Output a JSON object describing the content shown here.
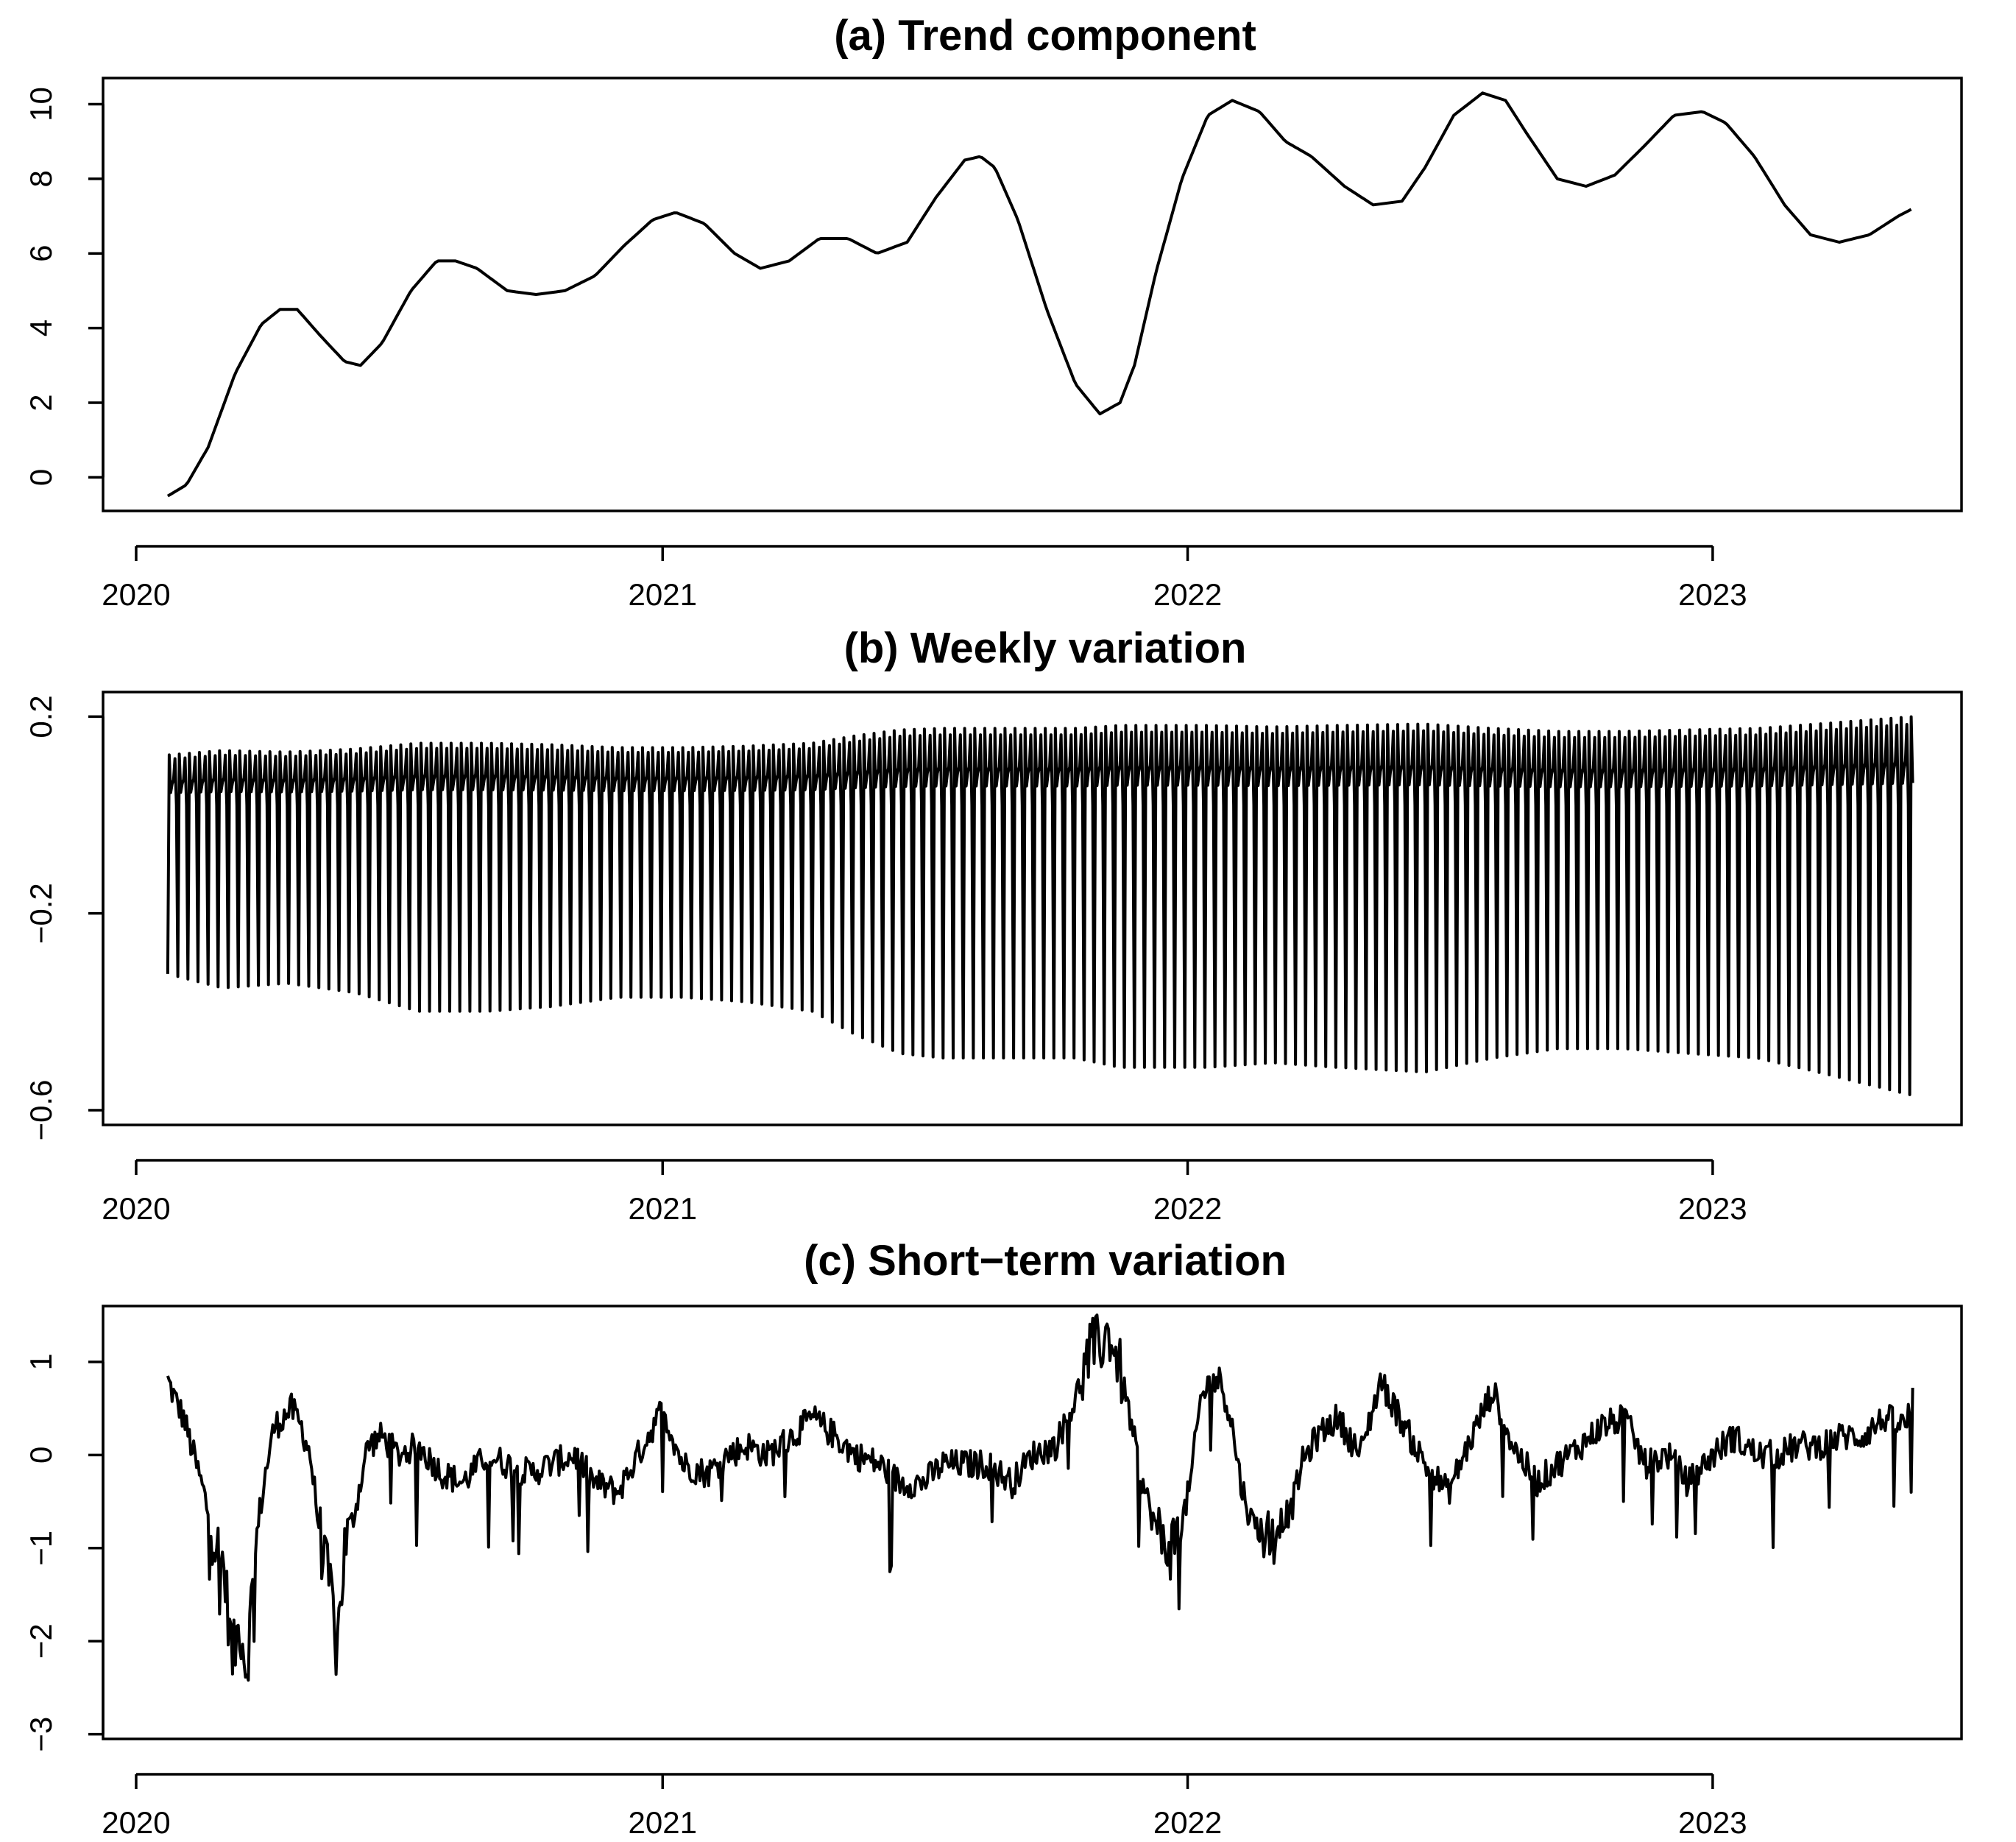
{
  "chart_data": [
    {
      "type": "line",
      "title": "(a) Trend component",
      "xlabel": "",
      "ylabel": "",
      "x_range": [
        "2020-01-23",
        "2023-05-20"
      ],
      "x_ticks": [
        {
          "value": "2020-01-01",
          "label": "2020"
        },
        {
          "value": "2021-01-01",
          "label": "2021"
        },
        {
          "value": "2022-01-01",
          "label": "2022"
        },
        {
          "value": "2023-01-01",
          "label": "2023"
        }
      ],
      "y_ticks": [
        0,
        2,
        4,
        6,
        8,
        10
      ],
      "ylim": [
        -0.9,
        10.7
      ],
      "grid": false,
      "series": [
        {
          "x": [
            "2020-01-23",
            "2020-02-05",
            "2020-02-20",
            "2020-03-10",
            "2020-03-28",
            "2020-04-10",
            "2020-04-22",
            "2020-05-08",
            "2020-05-25",
            "2020-06-05",
            "2020-06-20",
            "2020-07-10",
            "2020-07-28",
            "2020-08-10",
            "2020-08-25",
            "2020-09-15",
            "2020-10-05",
            "2020-10-25",
            "2020-11-15",
            "2020-12-05",
            "2020-12-25",
            "2021-01-10",
            "2021-01-30",
            "2021-02-20",
            "2021-03-10",
            "2021-03-30",
            "2021-04-20",
            "2021-05-10",
            "2021-05-30",
            "2021-06-20",
            "2021-07-10",
            "2021-07-30",
            "2021-08-10",
            "2021-08-20",
            "2021-09-05",
            "2021-09-25",
            "2021-10-15",
            "2021-11-01",
            "2021-11-15",
            "2021-11-25",
            "2021-12-10",
            "2021-12-28",
            "2022-01-15",
            "2022-02-01",
            "2022-02-20",
            "2022-03-10",
            "2022-03-28",
            "2022-04-20",
            "2022-05-10",
            "2022-05-30",
            "2022-06-15",
            "2022-07-05",
            "2022-07-25",
            "2022-08-10",
            "2022-08-25",
            "2022-09-15",
            "2022-10-05",
            "2022-10-25",
            "2022-11-15",
            "2022-12-05",
            "2022-12-25",
            "2023-01-10",
            "2023-01-30",
            "2023-02-20",
            "2023-03-10",
            "2023-03-30",
            "2023-04-20",
            "2023-05-10",
            "2023-05-20"
          ],
          "y": [
            -0.5,
            -0.2,
            0.8,
            2.8,
            4.1,
            4.5,
            4.5,
            3.8,
            3.1,
            3.0,
            3.6,
            5.0,
            5.8,
            5.8,
            5.6,
            5.0,
            4.9,
            5.0,
            5.4,
            6.2,
            6.9,
            7.1,
            6.8,
            6.0,
            5.6,
            5.8,
            6.4,
            6.4,
            6.0,
            6.3,
            7.5,
            8.5,
            8.6,
            8.3,
            6.9,
            4.5,
            2.5,
            1.7,
            2.0,
            3.0,
            5.5,
            8.0,
            9.7,
            10.1,
            9.8,
            9.0,
            8.6,
            7.8,
            7.3,
            7.4,
            8.3,
            9.7,
            10.3,
            10.1,
            9.2,
            8.0,
            7.8,
            8.1,
            8.9,
            9.7,
            9.8,
            9.5,
            8.6,
            7.3,
            6.5,
            6.3,
            6.5,
            7.0,
            7.2
          ]
        }
      ]
    },
    {
      "type": "line",
      "title": "(b) Weekly variation",
      "xlabel": "",
      "ylabel": "",
      "x_range": [
        "2020-01-23",
        "2023-05-20"
      ],
      "x_ticks": [
        {
          "value": "2020-01-01",
          "label": "2020"
        },
        {
          "value": "2021-01-01",
          "label": "2021"
        },
        {
          "value": "2022-01-01",
          "label": "2022"
        },
        {
          "value": "2023-01-01",
          "label": "2023"
        }
      ],
      "y_ticks": [
        -0.6,
        -0.2,
        0.2
      ],
      "y_tick_labels": [
        "−0.6",
        "−0.2",
        "0.2"
      ],
      "ylim": [
        -0.63,
        0.25
      ],
      "grid": false,
      "period_days": 7,
      "weekly_pattern": [
        -0.95,
        0.6,
        0.15,
        0.25,
        0.3,
        0.55,
        0.0
      ],
      "amplitude_dates": [
        "2020-01-23",
        "2020-03-01",
        "2020-04-15",
        "2020-06-01",
        "2020-07-15",
        "2020-09-01",
        "2020-10-15",
        "2020-12-01",
        "2021-01-15",
        "2021-03-01",
        "2021-04-15",
        "2021-05-15",
        "2021-06-15",
        "2021-07-15",
        "2021-09-01",
        "2021-10-15",
        "2021-11-15",
        "2022-01-15",
        "2022-03-01",
        "2022-04-15",
        "2022-06-15",
        "2022-08-01",
        "2022-09-15",
        "2022-11-01",
        "2022-12-15",
        "2023-02-01",
        "2023-03-15",
        "2023-05-20"
      ],
      "amplitude_values": [
        0.34,
        0.37,
        0.36,
        0.38,
        0.42,
        0.42,
        0.41,
        0.39,
        0.39,
        0.4,
        0.42,
        0.47,
        0.51,
        0.52,
        0.52,
        0.52,
        0.54,
        0.54,
        0.53,
        0.54,
        0.55,
        0.52,
        0.5,
        0.5,
        0.51,
        0.52,
        0.55,
        0.6
      ]
    },
    {
      "type": "line",
      "title": "(c) Short−term variation",
      "xlabel": "",
      "ylabel": "",
      "x_range": [
        "2020-01-23",
        "2023-05-20"
      ],
      "x_ticks": [
        {
          "value": "2020-01-01",
          "label": "2020"
        },
        {
          "value": "2021-01-01",
          "label": "2021"
        },
        {
          "value": "2022-01-01",
          "label": "2022"
        },
        {
          "value": "2023-01-01",
          "label": "2023"
        }
      ],
      "y_ticks": [
        -3,
        -2,
        -1,
        0,
        1
      ],
      "y_tick_labels": [
        "−3",
        "−2",
        "−1",
        "0",
        "1"
      ],
      "ylim": [
        -3.05,
        1.6
      ],
      "grid": false,
      "series": [
        {
          "x": [
            "2020-01-23",
            "2020-01-28",
            "2020-02-03",
            "2020-02-10",
            "2020-02-17",
            "2020-02-24",
            "2020-03-02",
            "2020-03-08",
            "2020-03-13",
            "2020-03-18",
            "2020-03-22",
            "2020-03-27",
            "2020-04-01",
            "2020-04-06",
            "2020-04-12",
            "2020-04-18",
            "2020-04-25",
            "2020-05-01",
            "2020-05-05",
            "2020-05-09",
            "2020-05-13",
            "2020-05-17",
            "2020-05-21",
            "2020-05-25",
            "2020-06-01",
            "2020-06-10",
            "2020-06-20",
            "2020-07-01",
            "2020-07-15",
            "2020-08-01",
            "2020-08-15",
            "2020-09-01",
            "2020-09-15",
            "2020-10-01",
            "2020-10-15",
            "2020-11-01",
            "2020-11-15",
            "2020-12-01",
            "2020-12-15",
            "2021-01-01",
            "2021-01-15",
            "2021-02-01",
            "2021-02-15",
            "2021-03-01",
            "2021-03-15",
            "2021-04-01",
            "2021-04-15",
            "2021-05-01",
            "2021-05-15",
            "2021-06-01",
            "2021-06-15",
            "2021-07-01",
            "2021-07-15",
            "2021-08-01",
            "2021-08-15",
            "2021-09-01",
            "2021-09-15",
            "2021-10-01",
            "2021-10-15",
            "2021-10-25",
            "2021-11-01",
            "2021-11-08",
            "2021-11-15",
            "2021-11-22",
            "2021-11-29",
            "2021-12-06",
            "2021-12-13",
            "2021-12-20",
            "2021-12-27",
            "2022-01-03",
            "2022-01-10",
            "2022-01-17",
            "2022-01-24",
            "2022-01-31",
            "2022-02-07",
            "2022-02-14",
            "2022-02-21",
            "2022-02-28",
            "2022-03-07",
            "2022-03-14",
            "2022-03-21",
            "2022-04-01",
            "2022-04-15",
            "2022-05-01",
            "2022-05-15",
            "2022-06-01",
            "2022-06-15",
            "2022-07-01",
            "2022-07-15",
            "2022-08-01",
            "2022-08-15",
            "2022-09-01",
            "2022-09-15",
            "2022-10-01",
            "2022-10-15",
            "2022-11-01",
            "2022-11-15",
            "2022-12-01",
            "2022-12-15",
            "2023-01-01",
            "2023-01-15",
            "2023-02-01",
            "2023-02-15",
            "2023-03-01",
            "2023-03-15",
            "2023-04-01",
            "2023-04-15",
            "2023-05-01",
            "2023-05-15",
            "2023-05-20"
          ],
          "y": [
            0.8,
            0.6,
            0.4,
            0.0,
            -0.4,
            -0.9,
            -1.2,
            -2.2,
            -1.8,
            -2.3,
            -1.4,
            -0.6,
            -0.1,
            0.3,
            0.4,
            0.5,
            0.3,
            0.0,
            -0.5,
            -1.0,
            -1.3,
            -1.6,
            -1.8,
            -1.0,
            -0.6,
            0.1,
            0.2,
            0.0,
            0.1,
            -0.2,
            -0.3,
            0.0,
            -0.1,
            -0.2,
            -0.1,
            0.0,
            -0.3,
            -0.4,
            0.0,
            0.5,
            -0.1,
            -0.2,
            0.0,
            0.1,
            0.0,
            0.2,
            0.4,
            0.2,
            0.0,
            -0.1,
            -0.3,
            -0.3,
            -0.1,
            -0.1,
            -0.1,
            -0.3,
            0.0,
            0.1,
            0.6,
            1.1,
            1.2,
            1.3,
            0.9,
            0.4,
            -0.2,
            -0.6,
            -0.9,
            -1.0,
            -0.8,
            -0.3,
            0.6,
            0.8,
            0.8,
            0.4,
            -0.3,
            -0.7,
            -0.8,
            -0.9,
            -0.7,
            -0.6,
            -0.1,
            0.2,
            0.4,
            0.0,
            0.8,
            0.3,
            -0.1,
            -0.4,
            0.1,
            0.7,
            0.1,
            -0.3,
            -0.1,
            0.1,
            0.3,
            0.4,
            -0.1,
            0.0,
            -0.3,
            0.0,
            0.2,
            0.0,
            0.0,
            0.1,
            0.1,
            0.2,
            0.2,
            0.4,
            0.3,
            0.6
          ]
        }
      ]
    }
  ]
}
